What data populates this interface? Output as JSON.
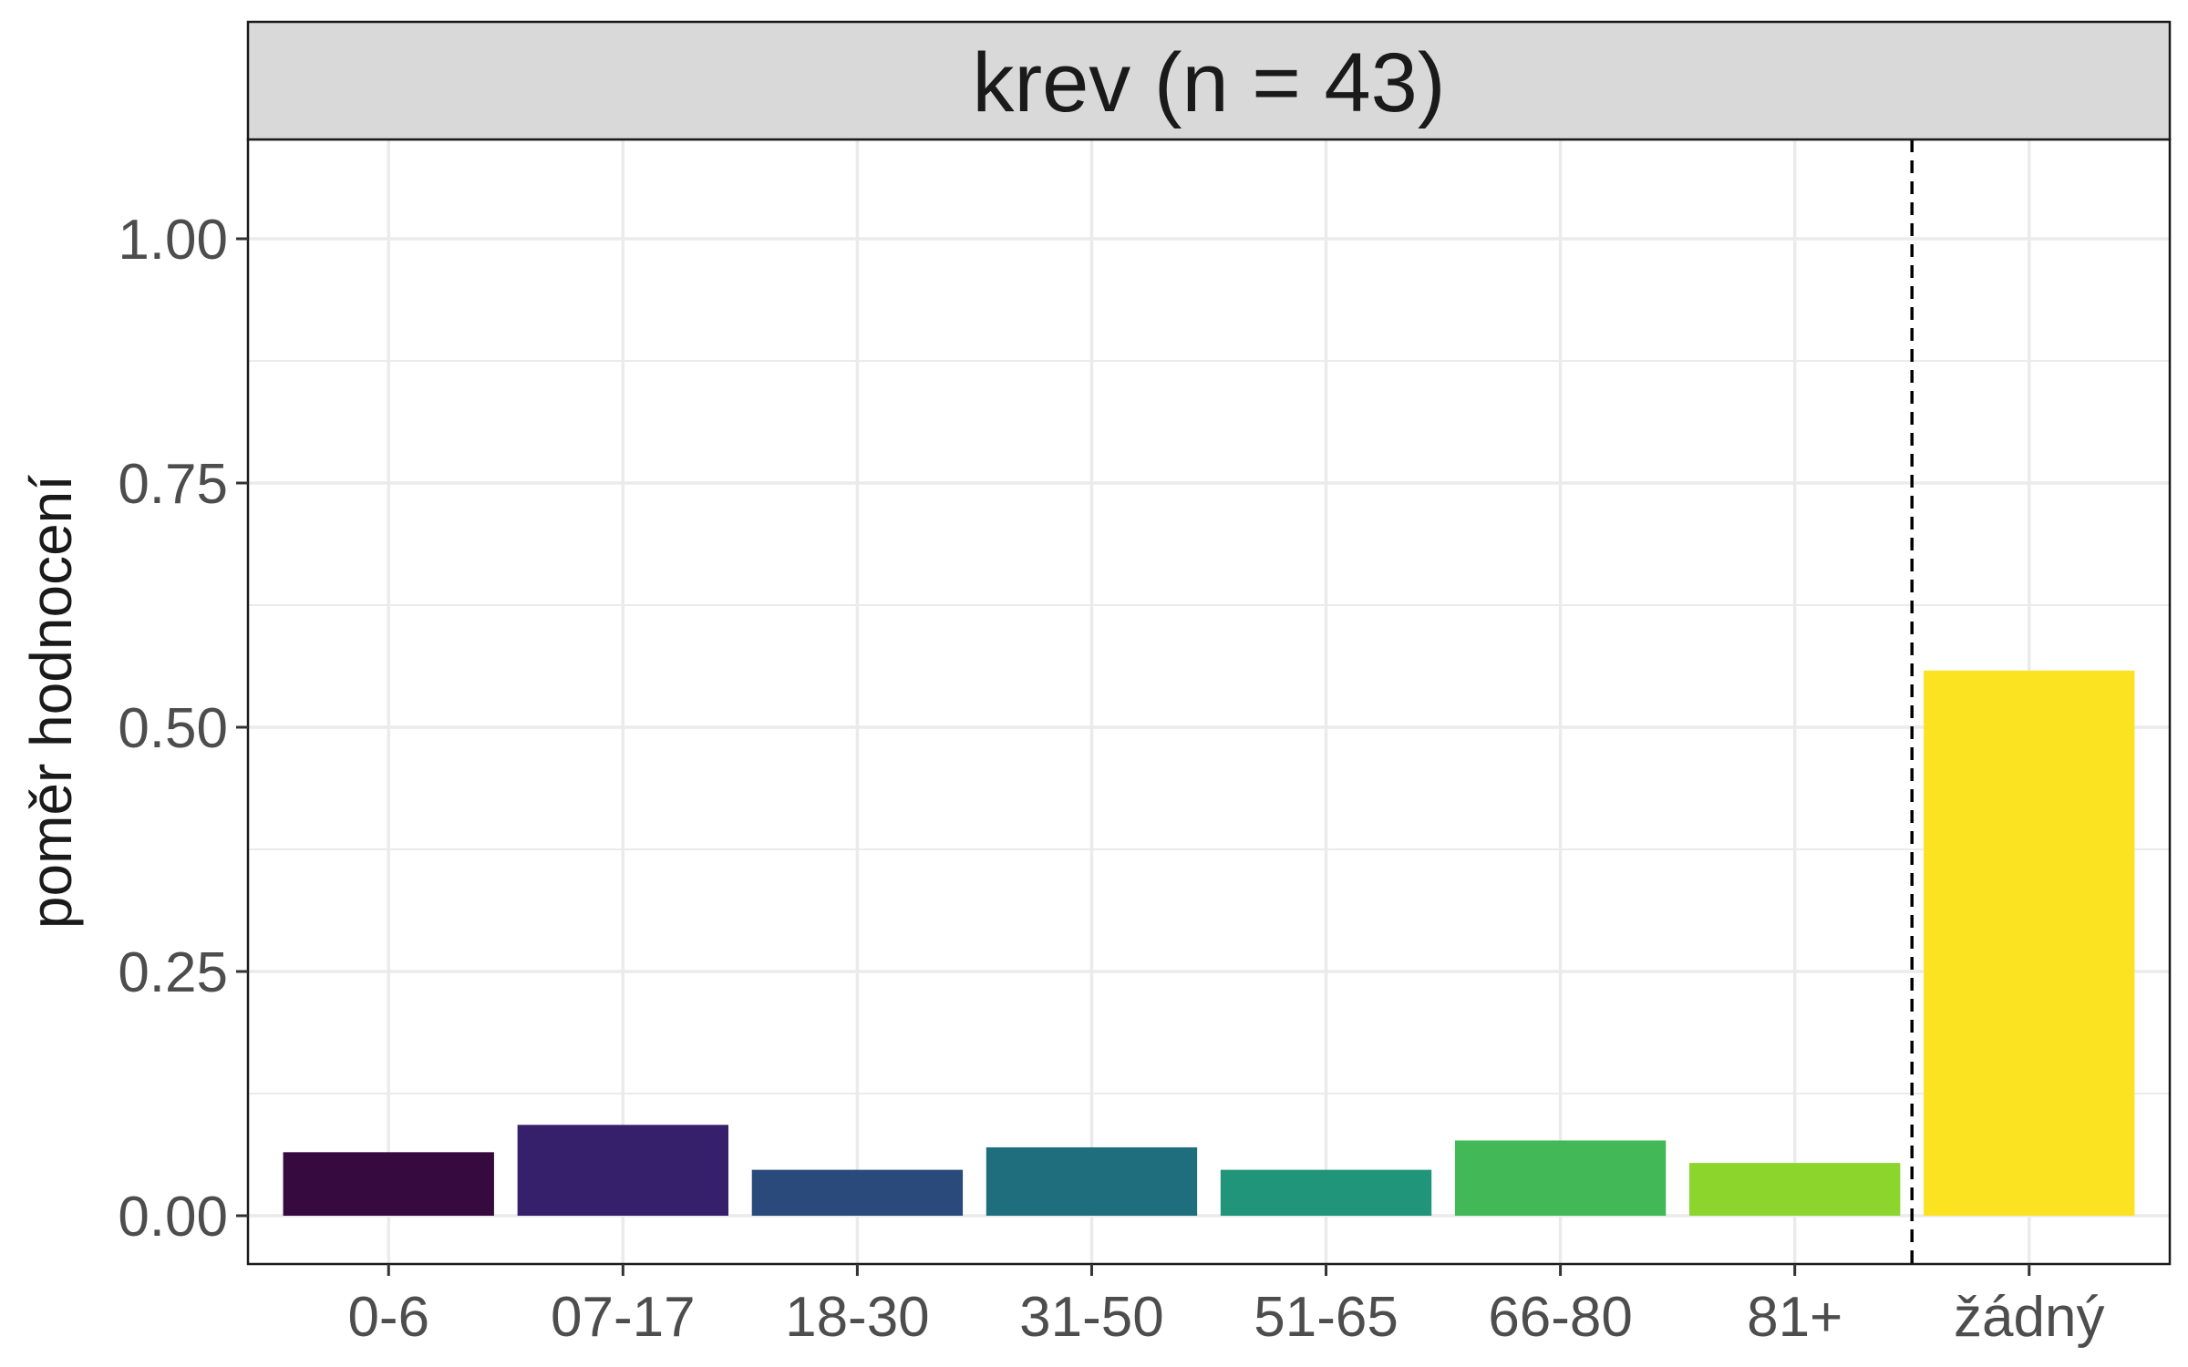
{
  "chart_data": {
    "type": "bar",
    "title": "krev (n = 43)",
    "xlabel": "",
    "ylabel": "poměr hodnocení",
    "categories": [
      "0-6",
      "07-17",
      "18-30",
      "31-50",
      "51-65",
      "66-80",
      "81+",
      "žádný"
    ],
    "values": [
      0.065,
      0.093,
      0.047,
      0.07,
      0.047,
      0.077,
      0.054,
      0.558
    ],
    "colors": [
      "#360A3E",
      "#36206B",
      "#2A4A7B",
      "#1F6E7E",
      "#21957A",
      "#42B857",
      "#8CD52D",
      "#FCE321"
    ],
    "ylim": [
      0,
      1.1
    ],
    "yticks": [
      "0.00",
      "0.25",
      "0.50",
      "0.75",
      "1.00"
    ],
    "ytick_values": [
      0,
      0.25,
      0.5,
      0.75,
      1.0
    ],
    "reference_line": {
      "style": "dashed",
      "between": [
        "81+",
        "žádný"
      ]
    },
    "grid": true,
    "legend": "none"
  }
}
